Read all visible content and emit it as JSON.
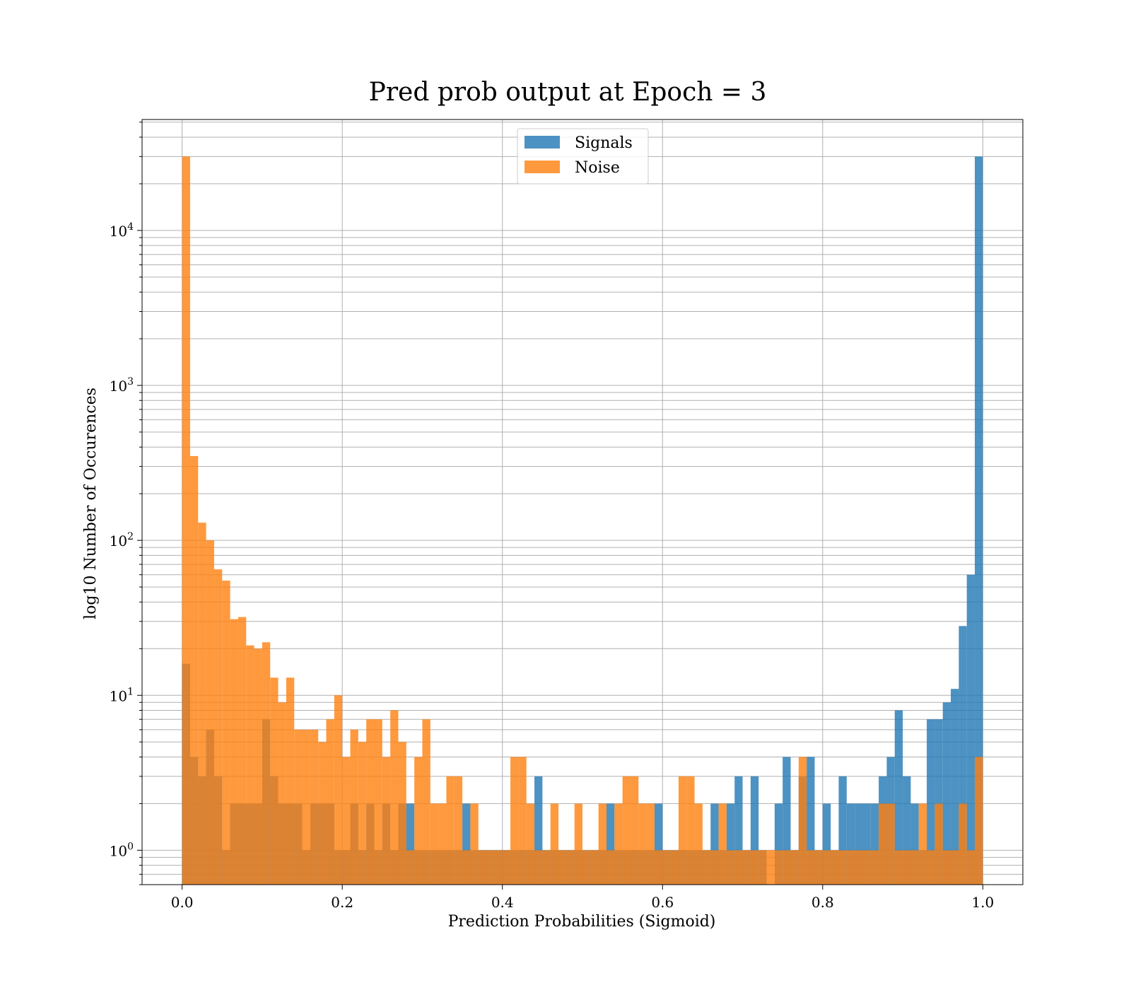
{
  "chart_data": {
    "type": "histogram",
    "title": "Pred prob output at Epoch = 3",
    "xlabel": "Prediction Probabilities (Sigmoid)",
    "ylabel": "log10 Number of Occurences",
    "x_range": [
      -0.05,
      1.05
    ],
    "y_scale": "log",
    "y_range": [
      0.6,
      52000
    ],
    "grid": true,
    "grid_minor_y": true,
    "legend_position": "upper-center",
    "bins": 100,
    "bin_range": [
      0,
      1
    ],
    "x_ticks": [
      {
        "value": 0.0,
        "label": "0.0"
      },
      {
        "value": 0.2,
        "label": "0.2"
      },
      {
        "value": 0.4,
        "label": "0.4"
      },
      {
        "value": 0.6,
        "label": "0.6"
      },
      {
        "value": 0.8,
        "label": "0.8"
      },
      {
        "value": 1.0,
        "label": "1.0"
      }
    ],
    "y_ticks": [
      {
        "value": 1,
        "base": "10",
        "exp": "0"
      },
      {
        "value": 10,
        "base": "10",
        "exp": "1"
      },
      {
        "value": 100,
        "base": "10",
        "exp": "2"
      },
      {
        "value": 1000,
        "base": "10",
        "exp": "3"
      },
      {
        "value": 10000,
        "base": "10",
        "exp": "4"
      }
    ],
    "series": [
      {
        "name": "Signals",
        "color": "#1f77b4",
        "alpha": 0.8,
        "counts": [
          16,
          4,
          3,
          6,
          3,
          1,
          2,
          2,
          2,
          2,
          7,
          3,
          2,
          2,
          2,
          1,
          2,
          2,
          2,
          1,
          1,
          2,
          1,
          2,
          1,
          2,
          1,
          2,
          2,
          1,
          1,
          1,
          1,
          1,
          1,
          2,
          1,
          1,
          1,
          1,
          1,
          1,
          1,
          1,
          3,
          1,
          1,
          1,
          1,
          1,
          1,
          1,
          1,
          2,
          1,
          1,
          1,
          1,
          1,
          2,
          1,
          1,
          1,
          1,
          1,
          1,
          2,
          1,
          2,
          3,
          1,
          3,
          1,
          0,
          2,
          4,
          1,
          3,
          4,
          1,
          2,
          1,
          3,
          2,
          2,
          2,
          2,
          3,
          4,
          8,
          3,
          2,
          1,
          7,
          7,
          9,
          11,
          28,
          60,
          30000
        ]
      },
      {
        "name": "Noise",
        "color": "#ff7f0e",
        "alpha": 0.8,
        "counts": [
          30000,
          350,
          130,
          100,
          65,
          55,
          31,
          32,
          21,
          20,
          22,
          13,
          9,
          13,
          6,
          6,
          6,
          5,
          7,
          10,
          4,
          6,
          5,
          7,
          7,
          4,
          8,
          5,
          1,
          4,
          7,
          2,
          2,
          3,
          3,
          1,
          2,
          1,
          1,
          1,
          1,
          4,
          4,
          2,
          1,
          1,
          2,
          1,
          1,
          2,
          1,
          1,
          2,
          1,
          2,
          3,
          3,
          2,
          2,
          1,
          1,
          1,
          3,
          3,
          2,
          1,
          1,
          2,
          1,
          1,
          1,
          1,
          1,
          1,
          1,
          1,
          1,
          4,
          1,
          1,
          1,
          1,
          1,
          1,
          1,
          1,
          1,
          2,
          2,
          1,
          1,
          1,
          2,
          1,
          2,
          1,
          1,
          2,
          1,
          4
        ]
      }
    ]
  }
}
